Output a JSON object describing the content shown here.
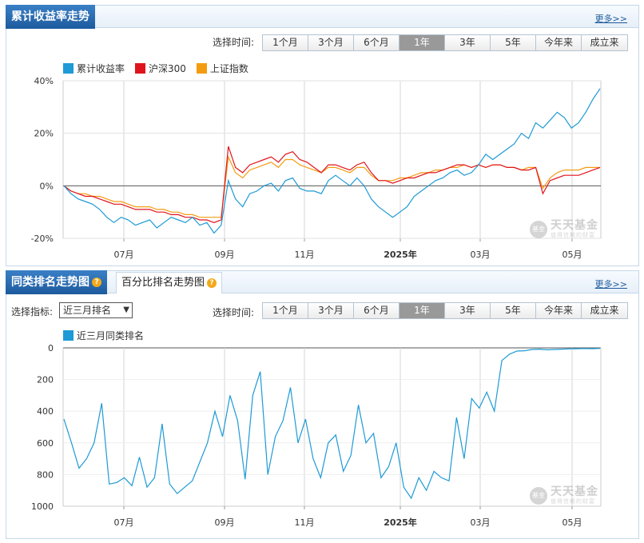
{
  "panel1": {
    "title": "累计收益率走势",
    "more": "更多>>",
    "range_label": "选择时间:",
    "ranges": [
      "1个月",
      "3个月",
      "6个月",
      "1年",
      "3年",
      "5年",
      "今年来",
      "成立来"
    ],
    "active_range": "1年"
  },
  "panel2": {
    "tab1": "同类排名走势图",
    "tab2": "百分比排名走势图",
    "more": "更多>>",
    "selector_label": "选择指标:",
    "selector_value": "近三月排名",
    "range_label": "选择时间:",
    "ranges": [
      "1个月",
      "3个月",
      "6个月",
      "1年",
      "3年",
      "5年",
      "今年来",
      "成立来"
    ],
    "active_range": "1年"
  },
  "watermark": {
    "name": "天天基金",
    "sub": "值得信赖的财富",
    "logo": "基金"
  },
  "colors": {
    "fund": "#1e9ad6",
    "hs300": "#e0141d",
    "sz": "#f39c12",
    "accent": "#1d5a9d"
  },
  "chart_data": [
    {
      "type": "line",
      "title": "",
      "ylabel": "",
      "ylim": [
        -20,
        40
      ],
      "yticks": [
        "40%",
        "20%",
        "0%",
        "-20%"
      ],
      "x_tick_labels": [
        "07月",
        "09月",
        "11月",
        "2025年",
        "03月",
        "05月"
      ],
      "legend": "top-left",
      "series": [
        {
          "name": "累计收益率",
          "values": [
            0,
            -3,
            -5,
            -6,
            -7,
            -9,
            -12,
            -14,
            -12,
            -13,
            -15,
            -14,
            -13,
            -16,
            -14,
            -12,
            -13,
            -14,
            -12,
            -15,
            -14,
            -18,
            -15,
            2,
            -5,
            -8,
            -3,
            -2,
            0,
            1,
            -2,
            2,
            3,
            -1,
            -2,
            -2,
            -3,
            2,
            4,
            2,
            0,
            3,
            0,
            -5,
            -8,
            -10,
            -12,
            -10,
            -8,
            -4,
            -2,
            0,
            2,
            3,
            5,
            6,
            4,
            5,
            8,
            12,
            10,
            12,
            14,
            16,
            20,
            18,
            24,
            22,
            25,
            28,
            26,
            22,
            24,
            28,
            33,
            37
          ]
        },
        {
          "name": "沪深300",
          "values": [
            0,
            -2,
            -3,
            -4,
            -4,
            -5,
            -6,
            -7,
            -7,
            -8,
            -9,
            -9,
            -9,
            -10,
            -10,
            -11,
            -11,
            -12,
            -12,
            -13,
            -13,
            -14,
            -13,
            15,
            7,
            5,
            8,
            9,
            10,
            11,
            9,
            12,
            13,
            10,
            9,
            7,
            5,
            8,
            8,
            7,
            6,
            8,
            9,
            5,
            2,
            2,
            1,
            2,
            3,
            3,
            4,
            5,
            5,
            6,
            7,
            8,
            8,
            7,
            8,
            7,
            8,
            8,
            7,
            7,
            6,
            6,
            7,
            -3,
            2,
            3,
            4,
            4,
            4,
            5,
            6,
            7
          ]
        },
        {
          "name": "上证指数",
          "values": [
            0,
            -2,
            -3,
            -3,
            -4,
            -4,
            -5,
            -6,
            -6,
            -7,
            -8,
            -8,
            -8,
            -9,
            -9,
            -10,
            -10,
            -11,
            -11,
            -12,
            -12,
            -12,
            -12,
            11,
            5,
            3,
            6,
            7,
            8,
            9,
            7,
            10,
            10,
            8,
            7,
            6,
            5,
            7,
            7,
            6,
            5,
            7,
            7,
            4,
            2,
            2,
            2,
            3,
            3,
            4,
            5,
            5,
            6,
            6,
            7,
            7,
            8,
            7,
            8,
            7,
            8,
            8,
            7,
            7,
            6,
            7,
            7,
            -1,
            3,
            5,
            6,
            6,
            6,
            7,
            7,
            7
          ]
        }
      ]
    },
    {
      "type": "line",
      "title": "",
      "ylabel": "",
      "ylim": [
        0,
        1000
      ],
      "y_inverted": true,
      "yticks": [
        "0",
        "200",
        "400",
        "600",
        "800",
        "1000"
      ],
      "x_tick_labels": [
        "07月",
        "09月",
        "11月",
        "2025年",
        "03月",
        "05月"
      ],
      "legend": "top-left",
      "series": [
        {
          "name": "近三月同类排名",
          "values": [
            450,
            600,
            760,
            700,
            600,
            350,
            860,
            850,
            820,
            870,
            690,
            880,
            820,
            480,
            860,
            920,
            880,
            840,
            720,
            600,
            400,
            560,
            300,
            460,
            830,
            300,
            150,
            800,
            560,
            460,
            250,
            600,
            450,
            700,
            820,
            600,
            550,
            780,
            680,
            360,
            600,
            540,
            820,
            750,
            600,
            880,
            950,
            820,
            900,
            780,
            820,
            840,
            440,
            700,
            320,
            380,
            280,
            400,
            80,
            40,
            20,
            18,
            10,
            8,
            12,
            10,
            8,
            6,
            5,
            4,
            5,
            3
          ]
        }
      ]
    }
  ]
}
